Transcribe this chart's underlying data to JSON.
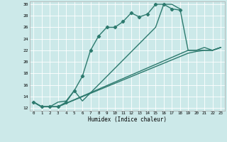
{
  "background_color": "#cce9e9",
  "grid_color": "#b0d8d8",
  "line_color": "#2d7a6e",
  "xlim": [
    -0.5,
    23.5
  ],
  "ylim": [
    11.5,
    30.5
  ],
  "xtick_vals": [
    0,
    1,
    2,
    3,
    4,
    5,
    6,
    7,
    8,
    9,
    10,
    11,
    12,
    13,
    14,
    15,
    16,
    17,
    18,
    19,
    20,
    21,
    22,
    23
  ],
  "ytick_vals": [
    12,
    14,
    16,
    18,
    20,
    22,
    24,
    26,
    28,
    30
  ],
  "xlabel": "Humidex (Indice chaleur)",
  "line1_x": [
    0,
    1,
    2,
    3,
    4,
    5,
    6,
    7,
    8,
    9,
    10,
    11,
    12,
    13,
    14,
    15,
    16,
    17,
    18
  ],
  "line1_y": [
    13.0,
    12.2,
    12.2,
    12.2,
    13.0,
    15.0,
    17.5,
    22.0,
    24.5,
    26.0,
    26.0,
    27.0,
    28.5,
    27.8,
    28.3,
    30.0,
    30.0,
    29.2,
    29.0
  ],
  "line2_x": [
    0,
    1,
    2,
    3,
    4,
    5,
    6,
    15,
    16,
    17,
    18,
    19,
    20,
    21,
    22,
    23
  ],
  "line2_y": [
    13.0,
    12.2,
    12.2,
    13.0,
    13.2,
    15.0,
    13.2,
    26.0,
    30.0,
    30.0,
    29.2,
    22.0,
    22.0,
    22.5,
    22.0,
    22.5
  ],
  "line3_x": [
    0,
    1,
    2,
    3,
    19,
    20,
    21,
    22,
    23
  ],
  "line3_y": [
    13.0,
    12.2,
    12.2,
    12.2,
    22.0,
    22.0,
    22.0,
    22.0,
    22.5
  ],
  "line4_x": [
    0,
    1,
    2,
    3,
    19,
    20,
    21,
    22,
    23
  ],
  "line4_y": [
    13.0,
    12.2,
    12.2,
    12.2,
    21.5,
    21.8,
    22.0,
    22.0,
    22.5
  ]
}
